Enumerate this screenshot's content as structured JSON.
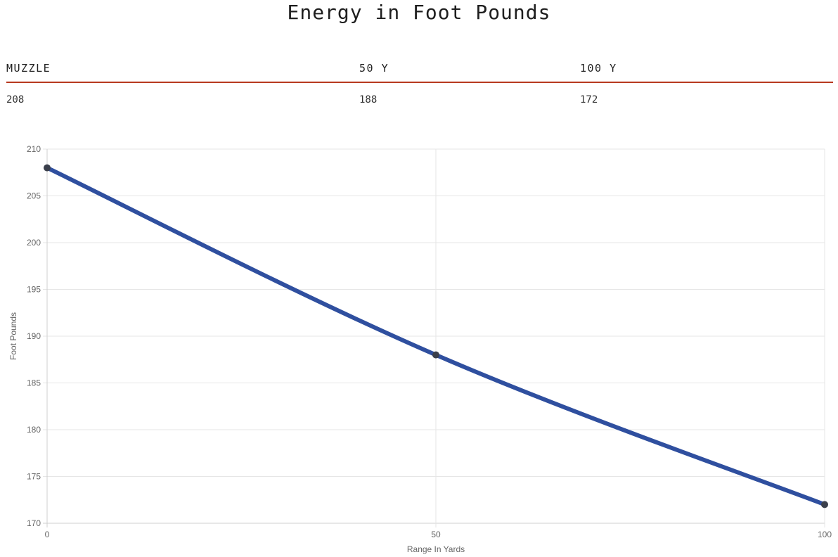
{
  "title": "Energy in Foot Pounds",
  "table": {
    "headers": [
      "MUZZLE",
      "50 Y",
      "100 Y"
    ],
    "values": [
      "208",
      "188",
      "172"
    ]
  },
  "chart_data": {
    "type": "line",
    "x": [
      0,
      50,
      100
    ],
    "series": [
      {
        "values": [
          208,
          188,
          172
        ],
        "color": "#2f4f9f"
      }
    ],
    "xlabel": "Range In Yards",
    "ylabel": "Foot Pounds",
    "xlim": [
      0,
      100
    ],
    "ylim": [
      170,
      210
    ],
    "xticks": [
      0,
      50,
      100
    ],
    "yticks": [
      170,
      175,
      180,
      185,
      190,
      195,
      200,
      205,
      210
    ],
    "grid": true,
    "point_color": "#3a3f4b"
  }
}
